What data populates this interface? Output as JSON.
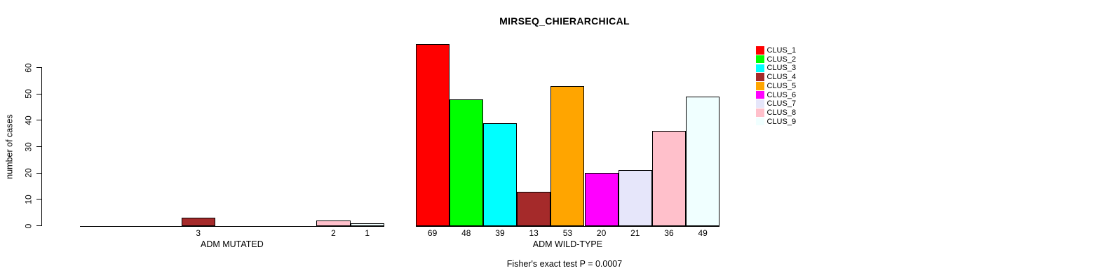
{
  "title": "MIRSEQ_CHIERARCHICAL",
  "y_axis": {
    "label": "number of cases"
  },
  "footer_annotation": "Fisher's exact test P = 0.0007",
  "chart_data": {
    "type": "grouped_bar",
    "title": "MIRSEQ_CHIERARCHICAL",
    "xlabel": "",
    "ylabel": "number of cases",
    "ylim": [
      0,
      60
    ],
    "yticks": [
      0,
      10,
      20,
      30,
      40,
      50,
      60
    ],
    "grid": false,
    "legend_position": "right",
    "categories": [
      "ADM MUTATED",
      "ADM WILD-TYPE"
    ],
    "series": [
      {
        "name": "CLUS_1",
        "color": "#ff0000",
        "values": [
          0,
          69
        ]
      },
      {
        "name": "CLUS_2",
        "color": "#00ff00",
        "values": [
          0,
          48
        ]
      },
      {
        "name": "CLUS_3",
        "color": "#00ffff",
        "values": [
          0,
          39
        ]
      },
      {
        "name": "CLUS_4",
        "color": "#a52a2a",
        "values": [
          3,
          13
        ]
      },
      {
        "name": "CLUS_5",
        "color": "#ffa500",
        "values": [
          0,
          53
        ]
      },
      {
        "name": "CLUS_6",
        "color": "#ff00ff",
        "values": [
          0,
          20
        ]
      },
      {
        "name": "CLUS_7",
        "color": "#e6e6fa",
        "values": [
          0,
          21
        ]
      },
      {
        "name": "CLUS_8",
        "color": "#ffc0cb",
        "values": [
          2,
          36
        ]
      },
      {
        "name": "CLUS_9",
        "color": "#f0ffff",
        "values": [
          1,
          49
        ]
      }
    ],
    "bar_value_labels": "value shown under each bar; zero-height bars unlabeled",
    "annotation": "Fisher's exact test P = 0.0007"
  }
}
